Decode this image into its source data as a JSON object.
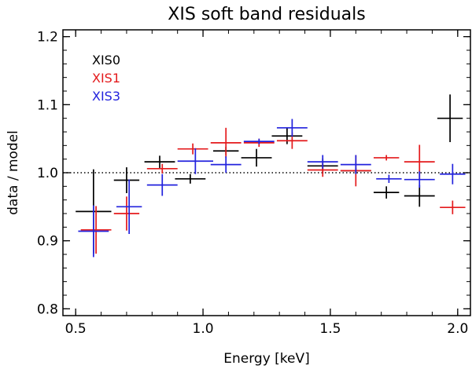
{
  "chart_data": {
    "type": "scatter",
    "title": "XIS soft band residuals",
    "xlabel": "Energy [keV]",
    "ylabel": "data / model",
    "xlim": [
      0.45,
      2.05
    ],
    "ylim": [
      0.79,
      1.21
    ],
    "xticks": [
      0.5,
      1.0,
      1.5,
      2.0
    ],
    "xtick_labels": [
      "0.5",
      "1.0",
      "1.5",
      "2.0"
    ],
    "yticks": [
      0.8,
      0.9,
      1.0,
      1.1,
      1.2
    ],
    "ytick_labels": [
      "0.8",
      "0.9",
      "1.0",
      "1.1",
      "1.2"
    ],
    "reference_line": {
      "y": 1.0,
      "style": "dotted"
    },
    "legend_position": "top-left",
    "series": [
      {
        "name": "XIS0",
        "color": "#000000",
        "points": [
          {
            "x": 0.57,
            "xerr": 0.07,
            "y": 0.943,
            "yerr": 0.062
          },
          {
            "x": 0.7,
            "xerr": 0.05,
            "y": 0.989,
            "yerr": 0.019
          },
          {
            "x": 0.83,
            "xerr": 0.06,
            "y": 1.016,
            "yerr": 0.009
          },
          {
            "x": 0.95,
            "xerr": 0.06,
            "y": 0.991,
            "yerr": 0.007
          },
          {
            "x": 1.09,
            "xerr": 0.05,
            "y": 1.032,
            "yerr": 0.006
          },
          {
            "x": 1.21,
            "xerr": 0.06,
            "y": 1.022,
            "yerr": 0.013
          },
          {
            "x": 1.33,
            "xerr": 0.06,
            "y": 1.054,
            "yerr": 0.012
          },
          {
            "x": 1.47,
            "xerr": 0.06,
            "y": 1.01,
            "yerr": 0.011
          },
          {
            "x": 1.6,
            "xerr": 0.06,
            "y": 1.003,
            "yerr": 0.004
          },
          {
            "x": 1.72,
            "xerr": 0.05,
            "y": 0.971,
            "yerr": 0.009
          },
          {
            "x": 1.85,
            "xerr": 0.06,
            "y": 0.966,
            "yerr": 0.016
          },
          {
            "x": 1.97,
            "xerr": 0.05,
            "y": 1.08,
            "yerr": 0.035
          }
        ]
      },
      {
        "name": "XIS1",
        "color": "#e41a1c",
        "points": [
          {
            "x": 0.58,
            "xerr": 0.06,
            "y": 0.916,
            "yerr": 0.035
          },
          {
            "x": 0.7,
            "xerr": 0.05,
            "y": 0.94,
            "yerr": 0.025
          },
          {
            "x": 0.84,
            "xerr": 0.06,
            "y": 1.006,
            "yerr": 0.007
          },
          {
            "x": 0.96,
            "xerr": 0.06,
            "y": 1.035,
            "yerr": 0.008
          },
          {
            "x": 1.09,
            "xerr": 0.06,
            "y": 1.044,
            "yerr": 0.022
          },
          {
            "x": 1.22,
            "xerr": 0.06,
            "y": 1.044,
            "yerr": 0.006
          },
          {
            "x": 1.35,
            "xerr": 0.06,
            "y": 1.047,
            "yerr": 0.012
          },
          {
            "x": 1.47,
            "xerr": 0.06,
            "y": 1.004,
            "yerr": 0.01
          },
          {
            "x": 1.6,
            "xerr": 0.06,
            "y": 1.003,
            "yerr": 0.023
          },
          {
            "x": 1.72,
            "xerr": 0.05,
            "y": 1.022,
            "yerr": 0.004
          },
          {
            "x": 1.85,
            "xerr": 0.06,
            "y": 1.016,
            "yerr": 0.025
          },
          {
            "x": 1.98,
            "xerr": 0.05,
            "y": 0.949,
            "yerr": 0.01
          }
        ]
      },
      {
        "name": "XIS3",
        "color": "#2222dd",
        "points": [
          {
            "x": 0.57,
            "xerr": 0.06,
            "y": 0.914,
            "yerr": 0.038
          },
          {
            "x": 0.71,
            "xerr": 0.05,
            "y": 0.95,
            "yerr": 0.04
          },
          {
            "x": 0.84,
            "xerr": 0.06,
            "y": 0.982,
            "yerr": 0.016
          },
          {
            "x": 0.97,
            "xerr": 0.07,
            "y": 1.017,
            "yerr": 0.019
          },
          {
            "x": 1.09,
            "xerr": 0.06,
            "y": 1.012,
            "yerr": 0.012
          },
          {
            "x": 1.22,
            "xerr": 0.06,
            "y": 1.046,
            "yerr": 0.004
          },
          {
            "x": 1.35,
            "xerr": 0.06,
            "y": 1.066,
            "yerr": 0.013
          },
          {
            "x": 1.47,
            "xerr": 0.06,
            "y": 1.016,
            "yerr": 0.01
          },
          {
            "x": 1.6,
            "xerr": 0.06,
            "y": 1.012,
            "yerr": 0.014
          },
          {
            "x": 1.73,
            "xerr": 0.05,
            "y": 0.991,
            "yerr": 0.006
          },
          {
            "x": 1.85,
            "xerr": 0.06,
            "y": 0.99,
            "yerr": 0.012
          },
          {
            "x": 1.98,
            "xerr": 0.05,
            "y": 0.998,
            "yerr": 0.015
          }
        ]
      }
    ]
  }
}
